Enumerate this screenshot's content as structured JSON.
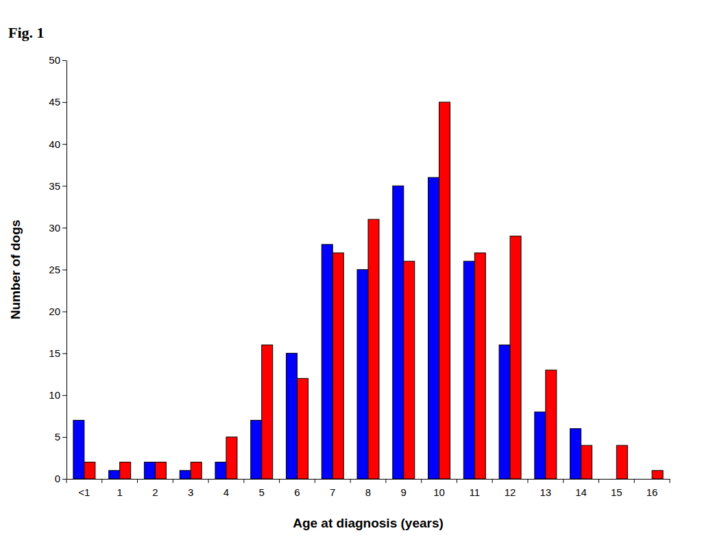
{
  "chart_data": {
    "type": "bar",
    "title": "Fig. 1",
    "x_label": "Age at diagnosis (years)",
    "y_label": "Number of dogs",
    "categories": [
      "<1",
      "1",
      "2",
      "3",
      "4",
      "5",
      "6",
      "7",
      "8",
      "9",
      "10",
      "11",
      "12",
      "13",
      "14",
      "15",
      "16"
    ],
    "series": [
      {
        "color": "#0000ff",
        "values": [
          7,
          1,
          2,
          1,
          2,
          7,
          15,
          28,
          25,
          35,
          36,
          26,
          16,
          8,
          6,
          0,
          0
        ]
      },
      {
        "color": "#ff0000",
        "values": [
          2,
          2,
          2,
          2,
          5,
          16,
          12,
          27,
          31,
          26,
          45,
          27,
          29,
          13,
          4,
          4,
          1
        ]
      }
    ],
    "ylim": [
      0,
      50
    ],
    "yticks": [
      0,
      5,
      10,
      15,
      20,
      25,
      30,
      35,
      40,
      45,
      50
    ],
    "grid": false
  }
}
